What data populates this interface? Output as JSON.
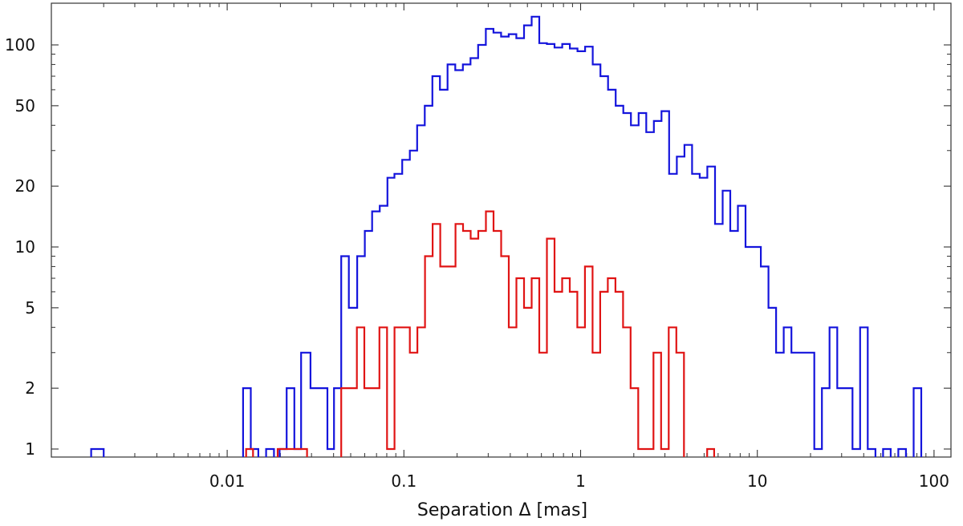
{
  "chart_data": {
    "type": "histogram",
    "title": "",
    "xlabel": "Separation Δ [mas]",
    "ylabel": "",
    "x_scale": "log",
    "y_scale": "log",
    "xlim": [
      0.0015,
      100
    ],
    "ylim": [
      0.9,
      150
    ],
    "x_ticks": [
      {
        "value": 0.01,
        "label": "0.01"
      },
      {
        "value": 0.1,
        "label": "0.1"
      },
      {
        "value": 1,
        "label": "1"
      },
      {
        "value": 10,
        "label": "10"
      },
      {
        "value": 100,
        "label": "100"
      }
    ],
    "y_ticks": [
      {
        "value": 1,
        "label": "1"
      },
      {
        "value": 2,
        "label": "2"
      },
      {
        "value": 5,
        "label": "5"
      },
      {
        "value": 10,
        "label": "10"
      },
      {
        "value": 20,
        "label": "20"
      },
      {
        "value": 50,
        "label": "50"
      },
      {
        "value": 100,
        "label": "100"
      }
    ],
    "grid": false,
    "series": [
      {
        "color": "#1414dc",
        "steps": [
          [
            0.0017,
            1
          ],
          [
            0.002,
            0
          ],
          [
            0.0123,
            2
          ],
          [
            0.0136,
            1
          ],
          [
            0.015,
            0
          ],
          [
            0.0166,
            1
          ],
          [
            0.0184,
            0
          ],
          [
            0.0198,
            1
          ],
          [
            0.0217,
            2
          ],
          [
            0.024,
            1
          ],
          [
            0.0262,
            3
          ],
          [
            0.0296,
            2
          ],
          [
            0.0369,
            1
          ],
          [
            0.0402,
            2
          ],
          [
            0.0442,
            9
          ],
          [
            0.0488,
            5
          ],
          [
            0.0544,
            9
          ],
          [
            0.0601,
            12
          ],
          [
            0.0661,
            15
          ],
          [
            0.073,
            16
          ],
          [
            0.0807,
            22
          ],
          [
            0.0884,
            23
          ],
          [
            0.0978,
            27
          ],
          [
            0.1081,
            30
          ],
          [
            0.1188,
            40
          ],
          [
            0.1312,
            50
          ],
          [
            0.1449,
            70
          ],
          [
            0.16,
            60
          ],
          [
            0.1767,
            80
          ],
          [
            0.1952,
            75
          ],
          [
            0.2157,
            80
          ],
          [
            0.2382,
            86
          ],
          [
            0.2632,
            100
          ],
          [
            0.2907,
            120
          ],
          [
            0.3212,
            115
          ],
          [
            0.3548,
            110
          ],
          [
            0.3919,
            113
          ],
          [
            0.4329,
            108
          ],
          [
            0.4783,
            125
          ],
          [
            0.5283,
            138
          ],
          [
            0.5836,
            102
          ],
          [
            0.6447,
            101
          ],
          [
            0.7122,
            97
          ],
          [
            0.7868,
            101
          ],
          [
            0.8691,
            96
          ],
          [
            0.9601,
            93
          ],
          [
            1.0606,
            98
          ],
          [
            1.1716,
            80
          ],
          [
            1.2942,
            70
          ],
          [
            1.4297,
            60
          ],
          [
            1.5793,
            50
          ],
          [
            1.7446,
            46
          ],
          [
            1.9272,
            40
          ],
          [
            2.1289,
            46
          ],
          [
            2.3518,
            37
          ],
          [
            2.5979,
            42
          ],
          [
            2.8698,
            47
          ],
          [
            3.1701,
            23
          ],
          [
            3.5019,
            28
          ],
          [
            3.8685,
            32
          ],
          [
            4.2733,
            23
          ],
          [
            4.7206,
            22
          ],
          [
            5.2147,
            25
          ],
          [
            5.7605,
            13
          ],
          [
            6.3634,
            19
          ],
          [
            7.0295,
            12
          ],
          [
            7.7652,
            16
          ],
          [
            8.578,
            10
          ],
          [
            9.4758,
            10
          ],
          [
            10.468,
            8
          ],
          [
            11.563,
            5
          ],
          [
            12.774,
            3
          ],
          [
            14.111,
            4
          ],
          [
            15.588,
            3
          ],
          [
            17.219,
            3
          ],
          [
            19.021,
            3
          ],
          [
            21.012,
            1
          ],
          [
            23.211,
            2
          ],
          [
            25.641,
            4
          ],
          [
            28.325,
            2
          ],
          [
            31.29,
            2
          ],
          [
            34.564,
            1
          ],
          [
            38.182,
            4
          ],
          [
            42.179,
            1
          ],
          [
            46.593,
            0
          ],
          [
            51.47,
            1
          ],
          [
            56.857,
            0
          ],
          [
            62.809,
            1
          ],
          [
            69.382,
            0
          ],
          [
            76.645,
            2
          ],
          [
            84.667,
            0
          ]
        ]
      },
      {
        "color": "#e01414",
        "steps": [
          [
            0.0128,
            1
          ],
          [
            0.014,
            0
          ],
          [
            0.0193,
            1
          ],
          [
            0.0244,
            1
          ],
          [
            0.0283,
            0
          ],
          [
            0.0442,
            2
          ],
          [
            0.0542,
            4
          ],
          [
            0.0597,
            2
          ],
          [
            0.066,
            2
          ],
          [
            0.0727,
            4
          ],
          [
            0.0803,
            1
          ],
          [
            0.0885,
            4
          ],
          [
            0.0979,
            4
          ],
          [
            0.1081,
            3
          ],
          [
            0.1192,
            4
          ],
          [
            0.1317,
            9
          ],
          [
            0.1454,
            13
          ],
          [
            0.1606,
            8
          ],
          [
            0.1773,
            8
          ],
          [
            0.1958,
            13
          ],
          [
            0.2162,
            12
          ],
          [
            0.2388,
            11
          ],
          [
            0.2637,
            12
          ],
          [
            0.2912,
            15
          ],
          [
            0.3217,
            12
          ],
          [
            0.3552,
            9
          ],
          [
            0.3922,
            4
          ],
          [
            0.4331,
            7
          ],
          [
            0.4783,
            5
          ],
          [
            0.5283,
            7
          ],
          [
            0.5836,
            3
          ],
          [
            0.6446,
            11
          ],
          [
            0.7117,
            6
          ],
          [
            0.786,
            7
          ],
          [
            0.868,
            6
          ],
          [
            0.9584,
            4
          ],
          [
            1.0583,
            8
          ],
          [
            1.1687,
            3
          ],
          [
            1.2906,
            6
          ],
          [
            1.4252,
            7
          ],
          [
            1.5739,
            6
          ],
          [
            1.738,
            4
          ],
          [
            1.9193,
            2
          ],
          [
            2.1195,
            1
          ],
          [
            2.3406,
            1
          ],
          [
            2.5847,
            3
          ],
          [
            2.8543,
            1
          ],
          [
            3.152,
            4
          ],
          [
            3.4807,
            3
          ],
          [
            3.8437,
            0
          ],
          [
            5.2,
            1
          ],
          [
            5.7,
            0
          ]
        ]
      }
    ]
  }
}
